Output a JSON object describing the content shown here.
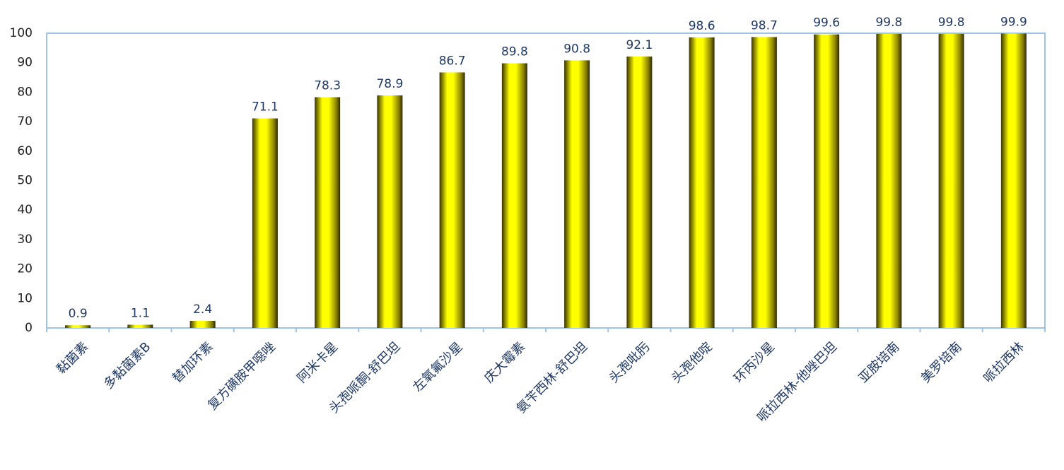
{
  "chart_data": {
    "type": "bar",
    "categories": [
      "黏菌素",
      "多黏菌素B",
      "替加环素",
      "复方磺胺甲噁唑",
      "阿米卡星",
      "头孢哌酮-舒巴坦",
      "左氧氟沙星",
      "庆大霉素",
      "氨苄西林-舒巴坦",
      "头孢吡肟",
      "头孢他啶",
      "环丙沙星",
      "哌拉西林-他唑巴坦",
      "亚胺培南",
      "美罗培南",
      "哌拉西林"
    ],
    "values": [
      0.9,
      1.1,
      2.4,
      71.1,
      78.3,
      78.9,
      86.7,
      89.8,
      90.8,
      92.1,
      98.6,
      98.7,
      99.6,
      99.8,
      99.8,
      99.9
    ],
    "color": "#ffff00",
    "ylim": [
      0,
      100
    ],
    "yticks": [
      0,
      10,
      20,
      30,
      40,
      50,
      60,
      70,
      80,
      90,
      100
    ],
    "grid": false
  }
}
